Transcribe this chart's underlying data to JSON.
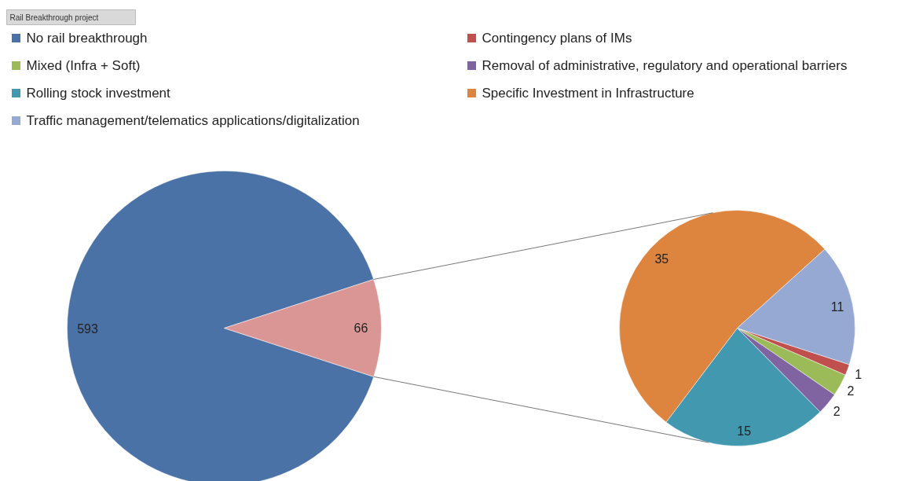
{
  "chart_data": [
    {
      "type": "pie",
      "title": "Rail Breakthrough project",
      "categories": [
        "No rail breakthrough",
        null
      ],
      "values": [
        593,
        66
      ],
      "colors": [
        "#4a72a6",
        "#d99694"
      ],
      "data_labels": true,
      "legend": "top"
    },
    {
      "type": "pie",
      "categories": [
        "Contingency plans of IMs",
        "Mixed (Infra + Soft)",
        "Removal of administrative, regulatory and operational barriers",
        "Rolling stock investment",
        "Specific Investment in Infrastructure",
        "Traffic management/telematics applications/digitalization"
      ],
      "values": [
        1,
        2,
        2,
        15,
        35,
        11
      ],
      "colors": [
        "#c0504d",
        "#9bbb59",
        "#8064a2",
        "#4198af",
        "#dd843e",
        "#95a9d2"
      ],
      "data_labels": true,
      "legend": "top"
    }
  ]
}
